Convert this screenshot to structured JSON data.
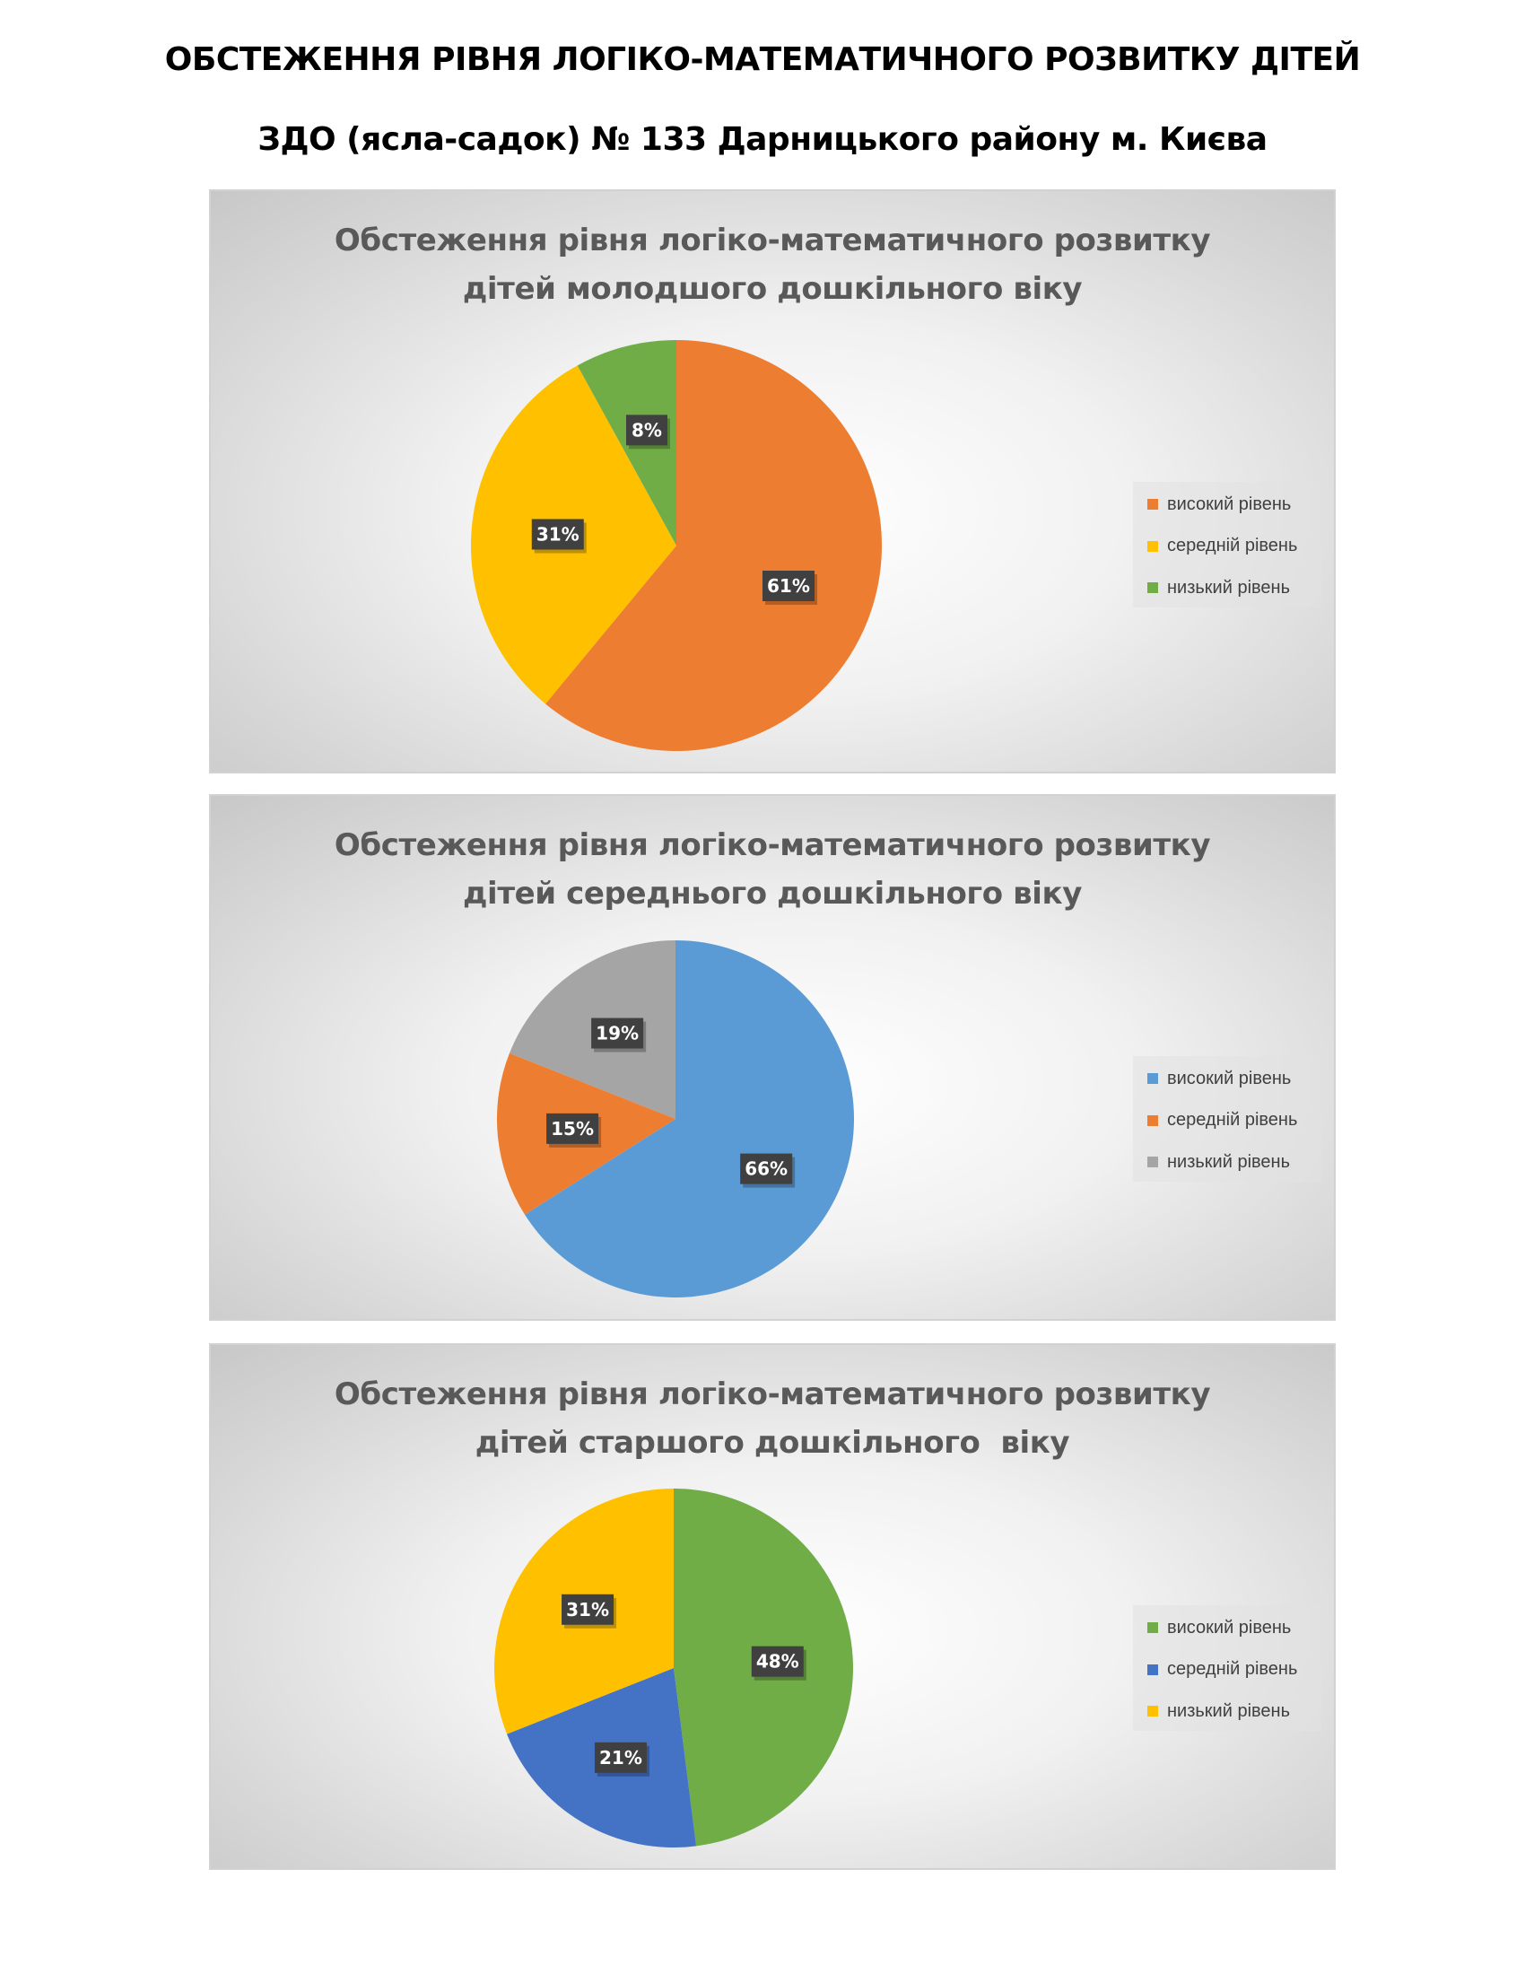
{
  "document": {
    "title_line1": "ОБСТЕЖЕННЯ РІВНЯ ЛОГІКО-МАТЕМАТИЧНОГО РОЗВИТКУ ДІТЕЙ",
    "title_line2": "ЗДО (ясла-садок) № 133 Дарницького району м. Києва"
  },
  "chart_data": [
    {
      "type": "pie",
      "title": "Обстеження рівня логіко-математичного розвитку дітей молодшого дошкільного віку",
      "title_lines": [
        "Обстеження рівня логіко-математичного розвитку",
        "дітей молодшого дошкільного віку"
      ],
      "categories": [
        "високий рівень",
        "середній рівень",
        "низький рівень"
      ],
      "values": [
        61,
        31,
        8
      ],
      "labels": [
        "61%",
        "31%",
        "8%"
      ],
      "colors": [
        "#ED7D31",
        "#FFC000",
        "#70AD47"
      ],
      "legend_position": "right"
    },
    {
      "type": "pie",
      "title": "Обстеження рівня логіко-математичного розвитку дітей середнього дошкільного віку",
      "title_lines": [
        "Обстеження рівня логіко-математичного розвитку",
        "дітей середнього дошкільного віку"
      ],
      "categories": [
        "високий рівень",
        "середній рівень",
        "низький рівень"
      ],
      "values": [
        66,
        15,
        19
      ],
      "labels": [
        "66%",
        "15%",
        "19%"
      ],
      "colors": [
        "#5B9BD5",
        "#ED7D31",
        "#A5A5A5"
      ],
      "legend_position": "right"
    },
    {
      "type": "pie",
      "title": "Обстеження рівня логіко-математичного розвитку дітей старшого дошкільного  віку",
      "title_lines": [
        "Обстеження рівня логіко-математичного розвитку",
        "дітей старшого дошкільного  віку"
      ],
      "categories": [
        "високий рівень",
        "середній рівень",
        "низький рівень"
      ],
      "values": [
        48,
        21,
        31
      ],
      "labels": [
        "48%",
        "21%",
        "31%"
      ],
      "colors": [
        "#70AD47",
        "#4472C4",
        "#FFC000"
      ],
      "legend_position": "right"
    }
  ]
}
